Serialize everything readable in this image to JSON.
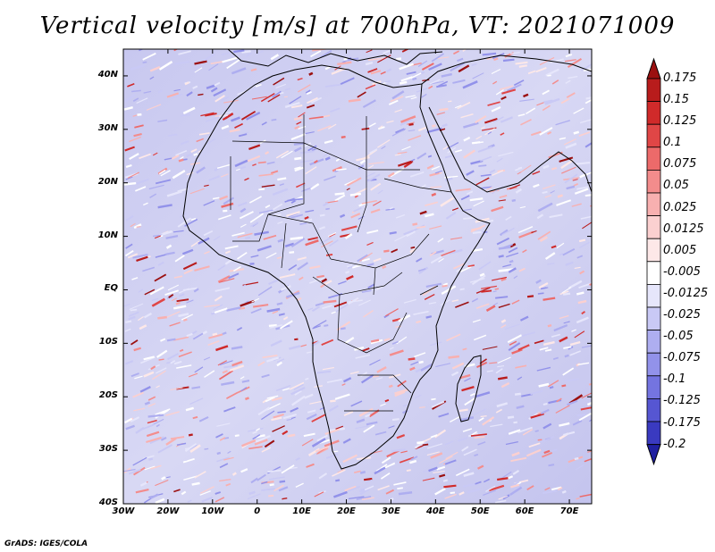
{
  "title": "Vertical velocity [m/s] at 700hPa, VT: 2021071009",
  "credit": "GrADS: IGES/COLA",
  "map": {
    "lat_labels": [
      "40N",
      "30N",
      "20N",
      "10N",
      "EQ",
      "10S",
      "20S",
      "30S",
      "40S"
    ],
    "lon_labels": [
      "30W",
      "20W",
      "10W",
      "0",
      "10E",
      "20E",
      "30E",
      "40E",
      "50E",
      "60E",
      "70E"
    ],
    "lon_range": [
      -30,
      75
    ],
    "lat_range": [
      -40,
      45
    ]
  },
  "colorbar": {
    "labels": [
      "0.175",
      "0.15",
      "0.125",
      "0.1",
      "0.075",
      "0.05",
      "0.025",
      "0.0125",
      "0.005",
      "-0.005",
      "-0.0125",
      "-0.025",
      "-0.05",
      "-0.075",
      "-0.1",
      "-0.125",
      "-0.175",
      "-0.2"
    ],
    "colors": [
      "#9b1010",
      "#b81c1c",
      "#d02a2a",
      "#e04646",
      "#ec6a6a",
      "#f38c8c",
      "#f8b0b0",
      "#fbd0d0",
      "#fde8e8",
      "#ffffff",
      "#e6e6fb",
      "#c9c9f5",
      "#aeaef0",
      "#9292ea",
      "#7474e0",
      "#5656d2",
      "#3a3ac0",
      "#2020a0"
    ]
  }
}
